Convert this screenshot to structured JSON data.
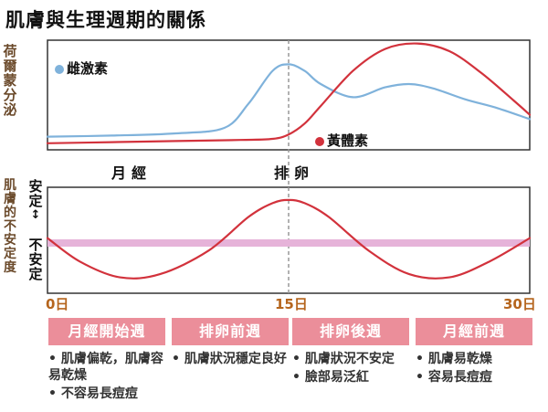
{
  "title": "肌膚與生理週期的關係",
  "colors": {
    "estrogen": "#7fb2db",
    "progesterone": "#d2323c",
    "skin": "#d2323c",
    "baseline": "#e6b3d9",
    "week_box": "#eb8e9a",
    "tick_text": "#b5651d"
  },
  "top_panel": {
    "ylabel": "荷爾蒙分泌",
    "estrogen_label": "雌激素",
    "progesterone_label": "黃體素"
  },
  "phases": {
    "menstruation": "月經",
    "ovulation": "排卵"
  },
  "bottom_panel": {
    "ylabel": "肌膚的不安定度",
    "top_label": "安定",
    "bottom_label": "不安定"
  },
  "ticks": {
    "start": "0日",
    "mid": "15日",
    "end": "30日"
  },
  "weeks": [
    {
      "label": "月經開始週",
      "notes": [
        "• 肌膚偏乾，肌膚容易乾燥",
        "• 不容易長痘痘"
      ]
    },
    {
      "label": "排卵前週",
      "notes": [
        "• 肌膚狀況穩定良好"
      ]
    },
    {
      "label": "排卵後週",
      "notes": [
        "• 肌膚狀況不安定",
        "• 臉部易泛紅"
      ]
    },
    {
      "label": "月經前週",
      "notes": [
        "• 肌膚易乾燥",
        "• 容易長痘痘"
      ]
    }
  ],
  "chart_data": [
    {
      "type": "line",
      "title": "",
      "xlabel": "",
      "ylabel": "荷爾蒙分泌",
      "xlim": [
        0,
        30
      ],
      "series": [
        {
          "name": "雌激素",
          "x": [
            0,
            4,
            8,
            11,
            12.5,
            14,
            15,
            16,
            17,
            19,
            21,
            22.5,
            24,
            26,
            28,
            30
          ],
          "y": [
            0.12,
            0.13,
            0.15,
            0.2,
            0.42,
            0.72,
            0.78,
            0.72,
            0.6,
            0.48,
            0.57,
            0.6,
            0.56,
            0.46,
            0.38,
            0.28
          ]
        },
        {
          "name": "黃體素",
          "x": [
            0,
            4,
            8,
            12,
            14,
            15,
            16,
            17,
            19,
            21,
            23,
            25,
            27,
            29,
            30
          ],
          "y": [
            0.06,
            0.07,
            0.08,
            0.09,
            0.1,
            0.14,
            0.24,
            0.4,
            0.72,
            0.92,
            0.97,
            0.9,
            0.7,
            0.45,
            0.32
          ]
        }
      ]
    },
    {
      "type": "line",
      "title": "",
      "xlabel": "",
      "ylabel": "肌膚的不安定度",
      "xlim": [
        0,
        30
      ],
      "series": [
        {
          "name": "",
          "x": [
            0,
            2,
            4.5,
            7,
            10,
            12.5,
            14,
            15,
            16,
            17.5,
            20,
            22.5,
            25,
            27.5,
            30
          ],
          "y": [
            0.52,
            0.3,
            0.15,
            0.18,
            0.4,
            0.72,
            0.85,
            0.88,
            0.85,
            0.72,
            0.4,
            0.18,
            0.15,
            0.3,
            0.52
          ]
        }
      ]
    }
  ]
}
